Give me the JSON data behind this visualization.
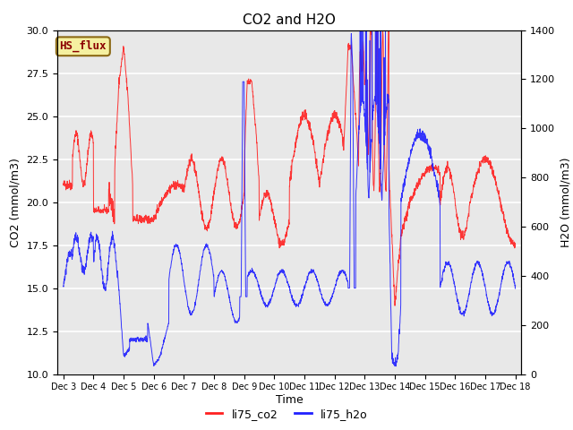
{
  "title": "CO2 and H2O",
  "xlabel": "Time",
  "ylabel_left": "CO2 (mmol/m3)",
  "ylabel_right": "H2O (mmol/m3)",
  "ylim_left": [
    10,
    30
  ],
  "ylim_right": [
    0,
    1400
  ],
  "background_color": "#e8e8e8",
  "annotation_text": "HS_flux",
  "annotation_bg": "#f5f0a0",
  "annotation_border": "#8B6914",
  "annotation_text_color": "#8B0000",
  "co2_color": "#ff2020",
  "h2o_color": "#2020ff",
  "legend_co2": "li75_co2",
  "legend_h2o": "li75_h2o",
  "x_tick_labels": [
    "Dec 3",
    "Dec 4",
    "Dec 5",
    "Dec 6",
    "Dec 7",
    "Dec 8",
    "Dec 9",
    "Dec 10",
    "Dec 11",
    "Dec 12",
    "Dec 13",
    "Dec 14",
    "Dec 15",
    "Dec 16",
    "Dec 17",
    "Dec 18"
  ],
  "figsize": [
    6.4,
    4.8
  ],
  "dpi": 100
}
